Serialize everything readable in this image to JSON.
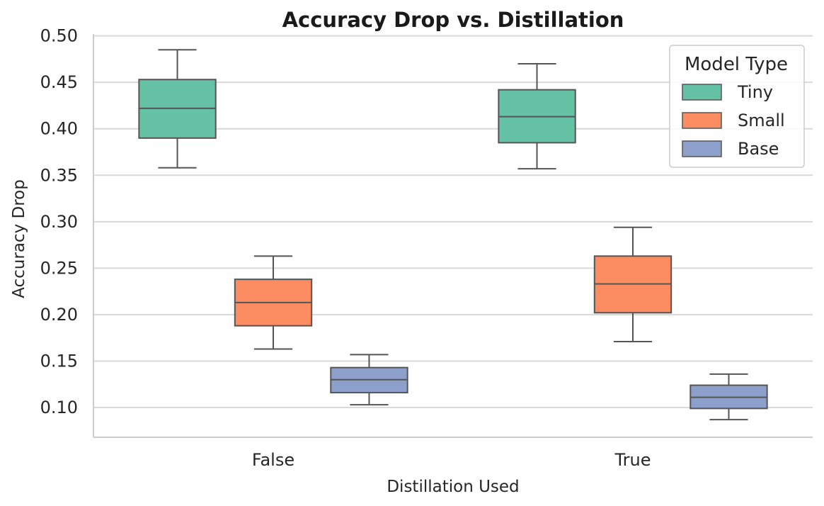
{
  "chart_data": {
    "type": "box",
    "title": "Accuracy Drop vs. Distillation",
    "xlabel": "Distillation Used",
    "ylabel": "Accuracy Drop",
    "categories": [
      "False",
      "True"
    ],
    "yticks": [
      "0.10",
      "0.15",
      "0.20",
      "0.25",
      "0.30",
      "0.35",
      "0.40",
      "0.45",
      "0.50"
    ],
    "ytick_values": [
      0.1,
      0.15,
      0.2,
      0.25,
      0.3,
      0.35,
      0.4,
      0.45,
      0.5
    ],
    "ylim": [
      0.068,
      0.502
    ],
    "grid": true,
    "legend": {
      "title": "Model Type",
      "placement": "top-right"
    },
    "series": [
      {
        "name": "Tiny",
        "color": "#66c2a5",
        "boxes": [
          {
            "category": "False",
            "whisker_low": 0.358,
            "q1": 0.39,
            "median": 0.422,
            "q3": 0.453,
            "whisker_high": 0.485
          },
          {
            "category": "True",
            "whisker_low": 0.357,
            "q1": 0.385,
            "median": 0.413,
            "q3": 0.442,
            "whisker_high": 0.47
          }
        ]
      },
      {
        "name": "Small",
        "color": "#fc8d62",
        "boxes": [
          {
            "category": "False",
            "whisker_low": 0.163,
            "q1": 0.188,
            "median": 0.213,
            "q3": 0.238,
            "whisker_high": 0.263
          },
          {
            "category": "True",
            "whisker_low": 0.171,
            "q1": 0.202,
            "median": 0.233,
            "q3": 0.263,
            "whisker_high": 0.294
          }
        ]
      },
      {
        "name": "Base",
        "color": "#8da0cb",
        "boxes": [
          {
            "category": "False",
            "whisker_low": 0.103,
            "q1": 0.116,
            "median": 0.13,
            "q3": 0.143,
            "whisker_high": 0.157
          },
          {
            "category": "True",
            "whisker_low": 0.087,
            "q1": 0.099,
            "median": 0.111,
            "q3": 0.124,
            "whisker_high": 0.136
          }
        ]
      }
    ]
  }
}
